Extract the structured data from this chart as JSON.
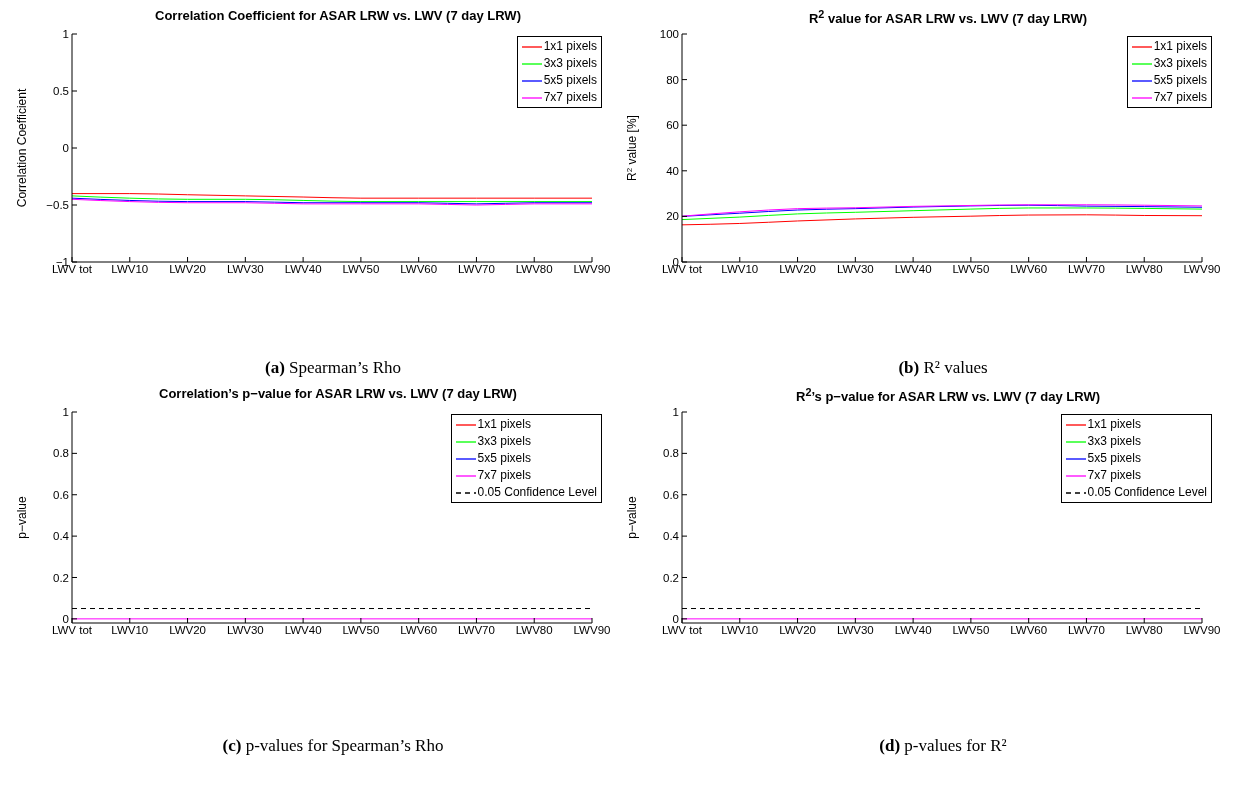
{
  "chart_data": [
    {
      "type": "line",
      "title": "Correlation Coefficient for ASAR LRW vs. LWV (7 day LRW)",
      "ylabel": "Correlation Coefficient",
      "categories": [
        "LWV tot",
        "LWV10",
        "LWV20",
        "LWV30",
        "LWV40",
        "LWV50",
        "LWV60",
        "LWV70",
        "LWV80",
        "LWV90"
      ],
      "ylim": [
        -1,
        1
      ],
      "yticks": [
        -1,
        -0.5,
        0,
        0.5,
        1
      ],
      "legend": "top right",
      "annotations": [
        "(a) Spearman’s Rho"
      ],
      "series": [
        {
          "name": "1x1 pixels",
          "color": "#ff0000",
          "values": [
            -0.4,
            -0.4,
            -0.41,
            -0.42,
            -0.43,
            -0.44,
            -0.44,
            -0.44,
            -0.44,
            -0.44
          ]
        },
        {
          "name": "3x3 pixels",
          "color": "#00ff00",
          "values": [
            -0.42,
            -0.44,
            -0.45,
            -0.45,
            -0.46,
            -0.47,
            -0.47,
            -0.47,
            -0.47,
            -0.47
          ]
        },
        {
          "name": "5x5 pixels",
          "color": "#0000ff",
          "values": [
            -0.44,
            -0.46,
            -0.47,
            -0.47,
            -0.48,
            -0.48,
            -0.48,
            -0.49,
            -0.48,
            -0.48
          ]
        },
        {
          "name": "7x7 pixels",
          "color": "#ff00ff",
          "values": [
            -0.45,
            -0.47,
            -0.48,
            -0.48,
            -0.49,
            -0.49,
            -0.49,
            -0.5,
            -0.49,
            -0.49
          ]
        }
      ]
    },
    {
      "type": "line",
      "title": "R$^{2}$ value for ASAR LRW vs. LWV (7 day LRW)",
      "ylabel": "R$^{2}$ value [%]",
      "categories": [
        "LWV tot",
        "LWV10",
        "LWV20",
        "LWV30",
        "LWV40",
        "LWV50",
        "LWV60",
        "LWV70",
        "LWV80",
        "LWV90"
      ],
      "ylim": [
        0,
        100
      ],
      "yticks": [
        0,
        20,
        40,
        60,
        80,
        100
      ],
      "legend": "top right",
      "annotations": [
        "(b) R² values"
      ],
      "series": [
        {
          "name": "1x1 pixels",
          "color": "#ff0000",
          "values": [
            16.3,
            16.9,
            18.0,
            18.9,
            19.6,
            20.1,
            20.6,
            20.7,
            20.4,
            20.3
          ]
        },
        {
          "name": "3x3 pixels",
          "color": "#00ff00",
          "values": [
            18.6,
            19.7,
            21.1,
            21.8,
            22.5,
            23.2,
            23.7,
            23.7,
            23.5,
            23.2
          ]
        },
        {
          "name": "5x5 pixels",
          "color": "#0000ff",
          "values": [
            20.0,
            21.4,
            22.8,
            23.4,
            24.1,
            24.6,
            24.9,
            24.5,
            24.3,
            24.0
          ]
        },
        {
          "name": "7x7 pixels",
          "color": "#ff00ff",
          "values": [
            20.1,
            22.0,
            23.4,
            23.8,
            24.4,
            24.8,
            25.1,
            25.1,
            24.9,
            24.6
          ]
        }
      ]
    },
    {
      "type": "line",
      "title": "Correlation’s p−value for ASAR LRW vs. LWV (7 day LRW)",
      "ylabel": "p−value",
      "categories": [
        "LWV tot",
        "LWV10",
        "LWV20",
        "LWV30",
        "LWV40",
        "LWV50",
        "LWV60",
        "LWV70",
        "LWV80",
        "LWV90"
      ],
      "ylim": [
        -0.02,
        1
      ],
      "yticks": [
        0,
        0.2,
        0.4,
        0.6,
        0.8,
        1
      ],
      "legend": "top right",
      "annotations": [
        "(c) p-values for Spearman’s Rho"
      ],
      "ref_lines": [
        {
          "axis": "y",
          "value": 0.05,
          "label": "0.05 Confidence Level",
          "color": "#000000",
          "line_style": "dashed"
        }
      ],
      "series": [
        {
          "name": "1x1 pixels",
          "color": "#ff0000",
          "values": [
            null,
            null,
            null,
            null,
            null,
            null,
            null,
            null,
            null,
            null
          ]
        },
        {
          "name": "3x3 pixels",
          "color": "#00ff00",
          "values": [
            null,
            null,
            null,
            null,
            null,
            null,
            null,
            null,
            null,
            null
          ]
        },
        {
          "name": "5x5 pixels",
          "color": "#0000ff",
          "values": [
            null,
            null,
            null,
            null,
            null,
            null,
            null,
            null,
            null,
            null
          ]
        },
        {
          "name": "7x7 pixels",
          "color": "#ff00ff",
          "values": [
            0,
            0,
            0,
            0,
            0,
            0,
            0,
            0,
            0,
            0
          ]
        }
      ]
    },
    {
      "type": "line",
      "title": "R$^{2}$’s p−value for ASAR LRW vs. LWV (7 day LRW)",
      "ylabel": "p−value",
      "categories": [
        "LWV tot",
        "LWV10",
        "LWV20",
        "LWV30",
        "LWV40",
        "LWV50",
        "LWV60",
        "LWV70",
        "LWV80",
        "LWV90"
      ],
      "ylim": [
        -0.02,
        1
      ],
      "yticks": [
        0,
        0.2,
        0.4,
        0.6,
        0.8,
        1
      ],
      "legend": "top right",
      "annotations": [
        "(d) p-values for R²"
      ],
      "ref_lines": [
        {
          "axis": "y",
          "value": 0.05,
          "label": "0.05 Confidence Level",
          "color": "#000000",
          "line_style": "dashed"
        }
      ],
      "series": [
        {
          "name": "1x1 pixels",
          "color": "#ff0000",
          "values": [
            null,
            null,
            null,
            null,
            null,
            null,
            null,
            null,
            null,
            null
          ]
        },
        {
          "name": "3x3 pixels",
          "color": "#00ff00",
          "values": [
            null,
            null,
            null,
            null,
            null,
            null,
            null,
            null,
            null,
            null
          ]
        },
        {
          "name": "5x5 pixels",
          "color": "#0000ff",
          "values": [
            null,
            null,
            null,
            null,
            null,
            null,
            null,
            null,
            null,
            null
          ]
        },
        {
          "name": "7x7 pixels",
          "color": "#ff00ff",
          "values": [
            0,
            0,
            0,
            0,
            0,
            0,
            0,
            0,
            0,
            0
          ]
        }
      ]
    }
  ]
}
